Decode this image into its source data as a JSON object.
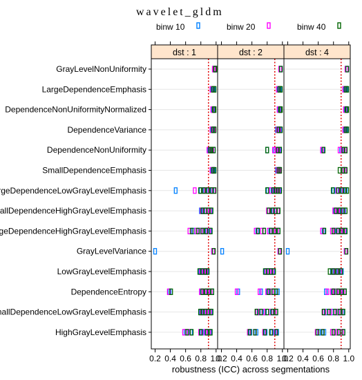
{
  "chart_data": {
    "type": "dot-strip",
    "title": "wavelet_gldm",
    "xlabel": "robustness (ICC) across segmentations",
    "ylabel": "",
    "xlim": [
      0.15,
      1.02
    ],
    "xticks": [
      0.2,
      0.4,
      0.6,
      0.8,
      1.0
    ],
    "xtick_labels": [
      "0.2",
      "0.4",
      "0.6",
      "0.8",
      "1.0"
    ],
    "reference_line": 0.9,
    "legend_position": "top",
    "grid": true,
    "panels": [
      "dst : 1",
      "dst : 2",
      "dst : 4"
    ],
    "features": [
      "GrayLevelNonUniformity",
      "LargeDependenceEmphasis",
      "DependenceNonUniformityNormalized",
      "DependenceVariance",
      "DependenceNonUniformity",
      "SmallDependenceEmphasis",
      "LargeDependenceLowGrayLevelEmphasis",
      "SmallDependenceHighGrayLevelEmphasis",
      "LargeDependenceHighGrayLevelEmphasis",
      "GrayLevelVariance",
      "LowGrayLevelEmphasis",
      "DependenceEntropy",
      "SmallDependenceLowGrayLevelEmphasis",
      "HighGrayLevelEmphasis"
    ],
    "series": [
      {
        "name": "binw 10",
        "color": "#0080ff",
        "values": [
          [
            [
              0.98,
              0.985
            ],
            [
              0.95,
              0.97
            ],
            [
              0.96,
              0.975
            ],
            [
              0.95,
              0.975
            ],
            [
              0.91,
              0.93,
              0.95,
              0.97
            ],
            [
              0.95,
              0.97
            ],
            [
              0.47,
              0.8,
              0.85,
              0.9,
              0.95
            ],
            [
              0.8,
              0.83,
              0.86,
              0.9,
              0.93
            ],
            [
              0.7,
              0.78,
              0.84,
              0.88,
              0.92
            ],
            [
              0.2,
              0.96
            ],
            [
              0.79,
              0.81,
              0.85,
              0.88
            ],
            [
              0.39,
              0.81,
              0.86,
              0.9,
              0.95
            ],
            [
              0.8,
              0.83,
              0.86,
              0.89,
              0.93
            ],
            [
              0.6,
              0.67,
              0.81,
              0.87,
              0.92
            ]
          ],
          [
            [
              0.98
            ],
            [
              0.95,
              0.97
            ],
            [
              0.96,
              0.97
            ],
            [
              0.93,
              0.95,
              0.97
            ],
            [
              0.8,
              0.9,
              0.93,
              0.96
            ],
            [
              0.93,
              0.96
            ],
            [
              0.81,
              0.87,
              0.9,
              0.93,
              0.96
            ],
            [
              0.82,
              0.88,
              0.91,
              0.95
            ],
            [
              0.67,
              0.76,
              0.84,
              0.9,
              0.95
            ],
            [
              0.21,
              0.96
            ],
            [
              0.78,
              0.81,
              0.85,
              0.88
            ],
            [
              0.42,
              0.72,
              0.81,
              0.88,
              0.94
            ],
            [
              0.69,
              0.77,
              0.86,
              0.92
            ],
            [
              0.58,
              0.66,
              0.78,
              0.86,
              0.93
            ]
          ],
          [
            [
              0.98
            ],
            [
              0.95,
              0.97
            ],
            [
              0.96,
              0.97
            ],
            [
              0.95,
              0.97
            ],
            [
              0.66,
              0.9,
              0.93,
              0.96
            ],
            [
              0.92,
              0.95
            ],
            [
              0.8,
              0.88,
              0.92,
              0.96
            ],
            [
              0.82,
              0.87,
              0.9,
              0.94
            ],
            [
              0.67,
              0.8,
              0.85,
              0.9,
              0.95
            ],
            [
              0.2,
              0.96
            ],
            [
              0.78,
              0.82,
              0.87,
              0.91
            ],
            [
              0.7,
              0.79,
              0.84,
              0.9,
              0.95
            ],
            [
              0.7,
              0.78,
              0.86,
              0.92
            ],
            [
              0.61,
              0.68,
              0.8,
              0.87,
              0.93
            ]
          ]
        ]
      },
      {
        "name": "binw 20",
        "color": "#ff00ff",
        "values": [
          [
            [
              0.97,
              0.98
            ],
            [
              0.94,
              0.96
            ],
            [
              0.95,
              0.97
            ],
            [
              0.94,
              0.97
            ],
            [
              0.9,
              0.92,
              0.95
            ],
            [
              0.94,
              0.96
            ],
            [
              0.72,
              0.83,
              0.88,
              0.93,
              0.97
            ],
            [
              0.81,
              0.85,
              0.89,
              0.92
            ],
            [
              0.65,
              0.74,
              0.8,
              0.86,
              0.91
            ],
            [
              0.96
            ],
            [
              0.8,
              0.84,
              0.87
            ],
            [
              0.38,
              0.8,
              0.85,
              0.89,
              0.93
            ],
            [
              0.81,
              0.85,
              0.88,
              0.92
            ],
            [
              0.58,
              0.64,
              0.79,
              0.86,
              0.91
            ]
          ],
          [
            [
              0.97
            ],
            [
              0.94,
              0.96
            ],
            [
              0.95,
              0.97
            ],
            [
              0.94,
              0.96
            ],
            [
              0.89,
              0.92,
              0.95
            ],
            [
              0.94,
              0.96
            ],
            [
              0.85,
              0.89,
              0.92,
              0.95
            ],
            [
              0.81,
              0.86,
              0.9,
              0.94
            ],
            [
              0.65,
              0.73,
              0.82,
              0.88,
              0.93
            ],
            [
              0.96
            ],
            [
              0.79,
              0.83,
              0.87
            ],
            [
              0.4,
              0.7,
              0.8,
              0.86,
              0.92
            ],
            [
              0.67,
              0.75,
              0.84,
              0.9
            ],
            [
              0.56,
              0.64,
              0.76,
              0.85,
              0.91
            ]
          ],
          [
            [
              0.97
            ],
            [
              0.94,
              0.96
            ],
            [
              0.95,
              0.97
            ],
            [
              0.94,
              0.96
            ],
            [
              0.65,
              0.88,
              0.92,
              0.95
            ],
            [
              0.92,
              0.95
            ],
            [
              0.85,
              0.9,
              0.94
            ],
            [
              0.81,
              0.86,
              0.89,
              0.93
            ],
            [
              0.65,
              0.78,
              0.83,
              0.89,
              0.94
            ],
            [
              0.96
            ],
            [
              0.79,
              0.84,
              0.89
            ],
            [
              0.72,
              0.78,
              0.83,
              0.88,
              0.93
            ],
            [
              0.68,
              0.76,
              0.84,
              0.9
            ],
            [
              0.58,
              0.66,
              0.78,
              0.85,
              0.91
            ]
          ]
        ]
      },
      {
        "name": "binw 40",
        "color": "#006400",
        "values": [
          [
            [
              0.99,
              0.985
            ],
            [
              0.96,
              0.98
            ],
            [
              0.97,
              0.98
            ],
            [
              0.96,
              0.98
            ],
            [
              0.92,
              0.94,
              0.97
            ],
            [
              0.96,
              0.98
            ],
            [
              0.79,
              0.84,
              0.89,
              0.94,
              0.98
            ],
            [
              0.82,
              0.86,
              0.9,
              0.94
            ],
            [
              0.68,
              0.76,
              0.82,
              0.87,
              0.93
            ],
            [
              0.97
            ],
            [
              0.78,
              0.82,
              0.86,
              0.89
            ],
            [
              0.41,
              0.82,
              0.87,
              0.91,
              0.95
            ],
            [
              0.79,
              0.82,
              0.86,
              0.9,
              0.94
            ],
            [
              0.62,
              0.68,
              0.8,
              0.88,
              0.93
            ]
          ],
          [
            [
              0.98
            ],
            [
              0.96,
              0.98
            ],
            [
              0.97,
              0.98
            ],
            [
              0.95,
              0.98
            ],
            [
              0.8,
              0.94,
              0.97
            ],
            [
              0.95,
              0.97
            ],
            [
              0.8,
              0.88,
              0.91,
              0.94,
              0.97
            ],
            [
              0.82,
              0.87,
              0.91,
              0.95
            ],
            [
              0.68,
              0.76,
              0.85,
              0.9,
              0.95
            ],
            [
              0.97
            ],
            [
              0.77,
              0.81,
              0.85,
              0.89
            ],
            [
              0.82,
              0.88,
              0.92
            ],
            [
              0.66,
              0.72,
              0.8,
              0.87,
              0.92
            ],
            [
              0.57,
              0.64,
              0.77,
              0.85,
              0.92
            ]
          ],
          [
            [
              0.98
            ],
            [
              0.96,
              0.98
            ],
            [
              0.97,
              0.98
            ],
            [
              0.96,
              0.98
            ],
            [
              0.67,
              0.93,
              0.96
            ],
            [
              0.88,
              0.93,
              0.96
            ],
            [
              0.79,
              0.86,
              0.91,
              0.95,
              0.98
            ],
            [
              0.83,
              0.88,
              0.92,
              0.96
            ],
            [
              0.68,
              0.8,
              0.86,
              0.91,
              0.96
            ],
            [
              0.97
            ],
            [
              0.75,
              0.8,
              0.85,
              0.9
            ],
            [
              0.8,
              0.86,
              0.91,
              0.95
            ],
            [
              0.67,
              0.74,
              0.82,
              0.88,
              0.93
            ],
            [
              0.59,
              0.66,
              0.8,
              0.87,
              0.93
            ]
          ]
        ]
      }
    ]
  }
}
